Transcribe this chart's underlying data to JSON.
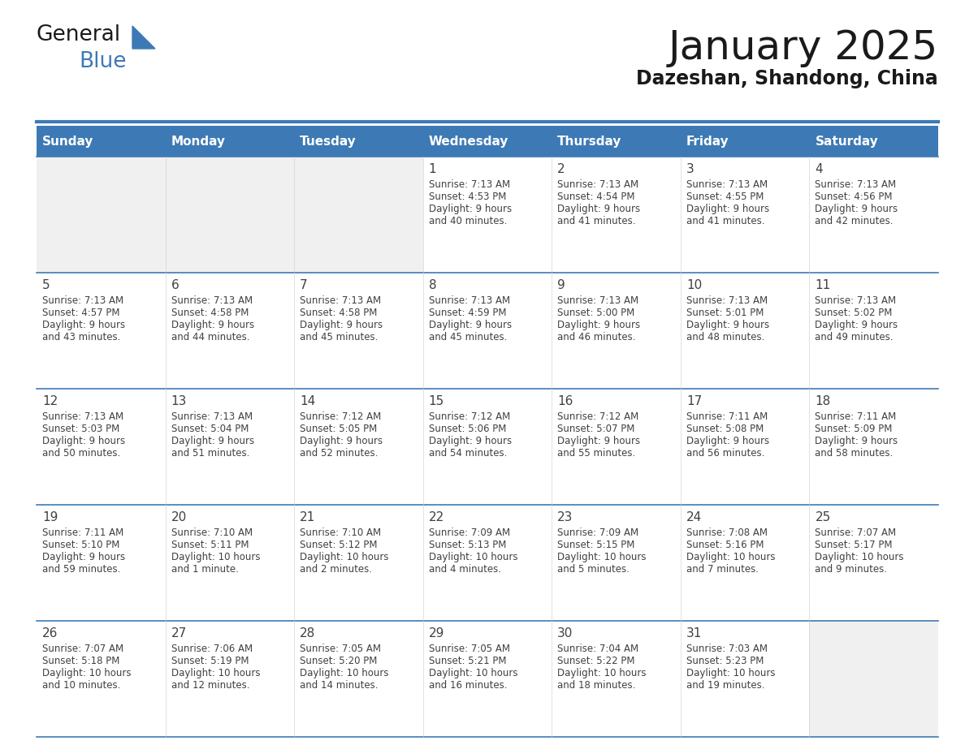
{
  "title": "January 2025",
  "subtitle": "Dazeshan, Shandong, China",
  "days_of_week": [
    "Sunday",
    "Monday",
    "Tuesday",
    "Wednesday",
    "Thursday",
    "Friday",
    "Saturday"
  ],
  "header_bg": "#3d7ab5",
  "header_text_color": "#ffffff",
  "cell_bg_light": "#f0f0f0",
  "cell_bg_white": "#ffffff",
  "text_color": "#404040",
  "line_color": "#3d7ab5",
  "calendar_data": [
    [
      null,
      null,
      null,
      {
        "day": 1,
        "sunrise": "7:13 AM",
        "sunset": "4:53 PM",
        "daylight": "9 hours",
        "daylight2": "and 40 minutes."
      },
      {
        "day": 2,
        "sunrise": "7:13 AM",
        "sunset": "4:54 PM",
        "daylight": "9 hours",
        "daylight2": "and 41 minutes."
      },
      {
        "day": 3,
        "sunrise": "7:13 AM",
        "sunset": "4:55 PM",
        "daylight": "9 hours",
        "daylight2": "and 41 minutes."
      },
      {
        "day": 4,
        "sunrise": "7:13 AM",
        "sunset": "4:56 PM",
        "daylight": "9 hours",
        "daylight2": "and 42 minutes."
      }
    ],
    [
      {
        "day": 5,
        "sunrise": "7:13 AM",
        "sunset": "4:57 PM",
        "daylight": "9 hours",
        "daylight2": "and 43 minutes."
      },
      {
        "day": 6,
        "sunrise": "7:13 AM",
        "sunset": "4:58 PM",
        "daylight": "9 hours",
        "daylight2": "and 44 minutes."
      },
      {
        "day": 7,
        "sunrise": "7:13 AM",
        "sunset": "4:58 PM",
        "daylight": "9 hours",
        "daylight2": "and 45 minutes."
      },
      {
        "day": 8,
        "sunrise": "7:13 AM",
        "sunset": "4:59 PM",
        "daylight": "9 hours",
        "daylight2": "and 45 minutes."
      },
      {
        "day": 9,
        "sunrise": "7:13 AM",
        "sunset": "5:00 PM",
        "daylight": "9 hours",
        "daylight2": "and 46 minutes."
      },
      {
        "day": 10,
        "sunrise": "7:13 AM",
        "sunset": "5:01 PM",
        "daylight": "9 hours",
        "daylight2": "and 48 minutes."
      },
      {
        "day": 11,
        "sunrise": "7:13 AM",
        "sunset": "5:02 PM",
        "daylight": "9 hours",
        "daylight2": "and 49 minutes."
      }
    ],
    [
      {
        "day": 12,
        "sunrise": "7:13 AM",
        "sunset": "5:03 PM",
        "daylight": "9 hours",
        "daylight2": "and 50 minutes."
      },
      {
        "day": 13,
        "sunrise": "7:13 AM",
        "sunset": "5:04 PM",
        "daylight": "9 hours",
        "daylight2": "and 51 minutes."
      },
      {
        "day": 14,
        "sunrise": "7:12 AM",
        "sunset": "5:05 PM",
        "daylight": "9 hours",
        "daylight2": "and 52 minutes."
      },
      {
        "day": 15,
        "sunrise": "7:12 AM",
        "sunset": "5:06 PM",
        "daylight": "9 hours",
        "daylight2": "and 54 minutes."
      },
      {
        "day": 16,
        "sunrise": "7:12 AM",
        "sunset": "5:07 PM",
        "daylight": "9 hours",
        "daylight2": "and 55 minutes."
      },
      {
        "day": 17,
        "sunrise": "7:11 AM",
        "sunset": "5:08 PM",
        "daylight": "9 hours",
        "daylight2": "and 56 minutes."
      },
      {
        "day": 18,
        "sunrise": "7:11 AM",
        "sunset": "5:09 PM",
        "daylight": "9 hours",
        "daylight2": "and 58 minutes."
      }
    ],
    [
      {
        "day": 19,
        "sunrise": "7:11 AM",
        "sunset": "5:10 PM",
        "daylight": "9 hours",
        "daylight2": "and 59 minutes."
      },
      {
        "day": 20,
        "sunrise": "7:10 AM",
        "sunset": "5:11 PM",
        "daylight": "10 hours",
        "daylight2": "and 1 minute."
      },
      {
        "day": 21,
        "sunrise": "7:10 AM",
        "sunset": "5:12 PM",
        "daylight": "10 hours",
        "daylight2": "and 2 minutes."
      },
      {
        "day": 22,
        "sunrise": "7:09 AM",
        "sunset": "5:13 PM",
        "daylight": "10 hours",
        "daylight2": "and 4 minutes."
      },
      {
        "day": 23,
        "sunrise": "7:09 AM",
        "sunset": "5:15 PM",
        "daylight": "10 hours",
        "daylight2": "and 5 minutes."
      },
      {
        "day": 24,
        "sunrise": "7:08 AM",
        "sunset": "5:16 PM",
        "daylight": "10 hours",
        "daylight2": "and 7 minutes."
      },
      {
        "day": 25,
        "sunrise": "7:07 AM",
        "sunset": "5:17 PM",
        "daylight": "10 hours",
        "daylight2": "and 9 minutes."
      }
    ],
    [
      {
        "day": 26,
        "sunrise": "7:07 AM",
        "sunset": "5:18 PM",
        "daylight": "10 hours",
        "daylight2": "and 10 minutes."
      },
      {
        "day": 27,
        "sunrise": "7:06 AM",
        "sunset": "5:19 PM",
        "daylight": "10 hours",
        "daylight2": "and 12 minutes."
      },
      {
        "day": 28,
        "sunrise": "7:05 AM",
        "sunset": "5:20 PM",
        "daylight": "10 hours",
        "daylight2": "and 14 minutes."
      },
      {
        "day": 29,
        "sunrise": "7:05 AM",
        "sunset": "5:21 PM",
        "daylight": "10 hours",
        "daylight2": "and 16 minutes."
      },
      {
        "day": 30,
        "sunrise": "7:04 AM",
        "sunset": "5:22 PM",
        "daylight": "10 hours",
        "daylight2": "and 18 minutes."
      },
      {
        "day": 31,
        "sunrise": "7:03 AM",
        "sunset": "5:23 PM",
        "daylight": "10 hours",
        "daylight2": "and 19 minutes."
      },
      null
    ]
  ],
  "logo_text1": "General",
  "logo_text2": "Blue",
  "logo_text1_color": "#1a1a1a",
  "logo_text2_color": "#3d7ab5",
  "logo_triangle_color": "#3d7ab5"
}
